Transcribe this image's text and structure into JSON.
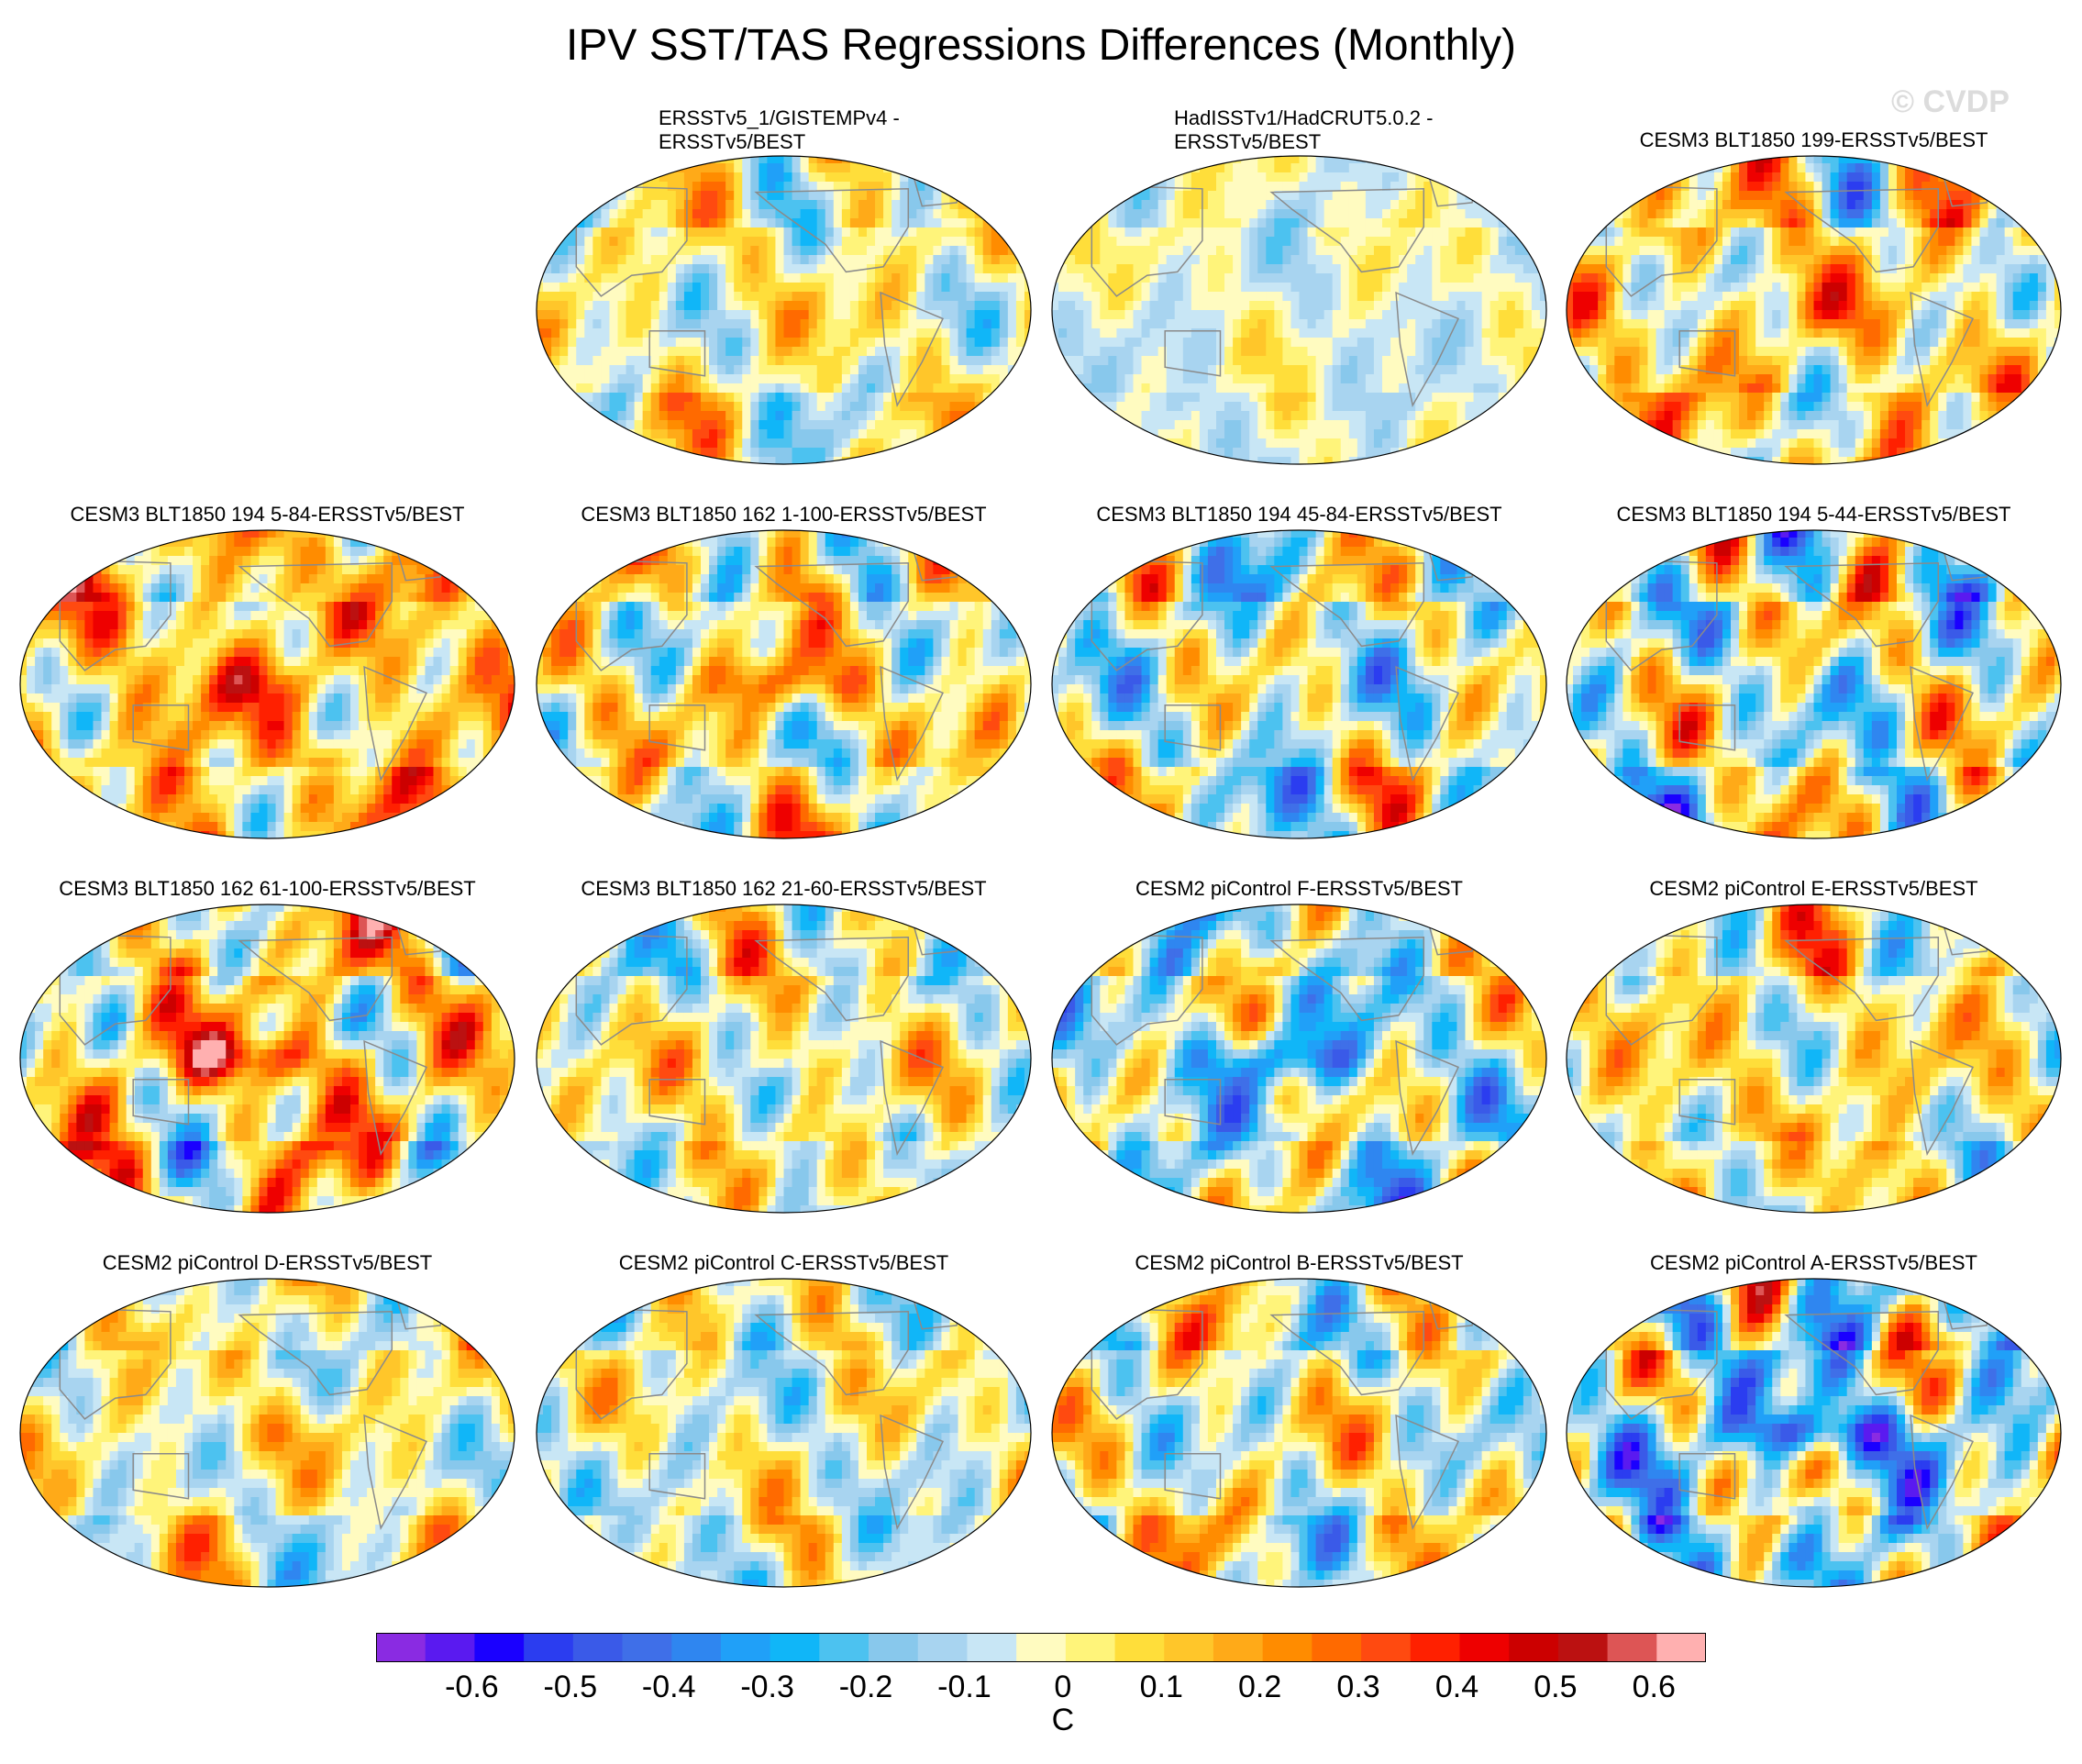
{
  "title": "IPV SST/TAS Regressions Differences (Monthly)",
  "watermark": "© CVDP",
  "chart_data": {
    "type": "heatmap",
    "title": "IPV SST/TAS Regressions Differences (Monthly)",
    "projection": "global map (Robinson-like), Pacific-centered",
    "colorbar": {
      "unit": "C",
      "tick_labels": [
        "-0.6",
        "-0.5",
        "-0.4",
        "-0.3",
        "-0.2",
        "-0.1",
        "0",
        "0.1",
        "0.2",
        "0.3",
        "0.4",
        "0.5",
        "0.6"
      ],
      "tick_values": [
        -0.6,
        -0.5,
        -0.4,
        -0.3,
        -0.2,
        -0.1,
        0,
        0.1,
        0.2,
        0.3,
        0.4,
        0.5,
        0.6
      ],
      "colors": [
        "#8a2be2",
        "#5a1af0",
        "#1a00ff",
        "#2b3df0",
        "#3a5ae8",
        "#3f6fe8",
        "#2f86f0",
        "#20a0f8",
        "#10b6f8",
        "#4cc2f0",
        "#88c8ec",
        "#a8d4f0",
        "#c8e6f5",
        "#fffbc0",
        "#fff47a",
        "#ffde3a",
        "#ffc62a",
        "#ffaa18",
        "#ff8c00",
        "#ff6a00",
        "#ff4a10",
        "#ff2000",
        "#ee0000",
        "#cc0000",
        "#bb1111",
        "#dd5555",
        "#ffb0b0"
      ]
    },
    "panels": [
      {
        "title": "ERSSTv5_1/GISTEMPv4 -\nERSSTv5/BEST",
        "pattern": 0,
        "bias": 0.02,
        "amp": 0.15
      },
      {
        "title": "HadISSTv1/HadCRUT5.0.2 -\nERSSTv5/BEST",
        "pattern": 1,
        "bias": -0.02,
        "amp": 0.09
      },
      {
        "title": "CESM3 BLT1850 199-ERSSTv5/BEST",
        "pattern": 2,
        "bias": 0.08,
        "amp": 0.2
      },
      {
        "title": "CESM3 BLT1850 194 5-84-ERSSTv5/BEST",
        "pattern": 3,
        "bias": 0.14,
        "amp": 0.2
      },
      {
        "title": "CESM3 BLT1850 162 1-100-ERSSTv5/BEST",
        "pattern": 4,
        "bias": 0.04,
        "amp": 0.2
      },
      {
        "title": "CESM3 BLT1850 194 45-84-ERSSTv5/BEST",
        "pattern": 5,
        "bias": -0.03,
        "amp": 0.22
      },
      {
        "title": "CESM3 BLT1850 194 5-44-ERSSTv5/BEST",
        "pattern": 6,
        "bias": -0.01,
        "amp": 0.25
      },
      {
        "title": "CESM3 BLT1850 162 61-100-ERSSTv5/BEST",
        "pattern": 7,
        "bias": 0.1,
        "amp": 0.25
      },
      {
        "title": "CESM3 BLT1850 162 21-60-ERSSTv5/BEST",
        "pattern": 8,
        "bias": 0.02,
        "amp": 0.18
      },
      {
        "title": "CESM2 piControl F-ERSSTv5/BEST",
        "pattern": 9,
        "bias": -0.06,
        "amp": 0.22
      },
      {
        "title": "CESM2 piControl E-ERSSTv5/BEST",
        "pattern": 10,
        "bias": 0.05,
        "amp": 0.18
      },
      {
        "title": "CESM2 piControl D-ERSSTv5/BEST",
        "pattern": 11,
        "bias": 0.02,
        "amp": 0.15
      },
      {
        "title": "CESM2 piControl C-ERSSTv5/BEST",
        "pattern": 12,
        "bias": 0.0,
        "amp": 0.16
      },
      {
        "title": "CESM2 piControl B-ERSSTv5/BEST",
        "pattern": 13,
        "bias": 0.01,
        "amp": 0.2
      },
      {
        "title": "CESM2 piControl A-ERSSTv5/BEST",
        "pattern": 14,
        "bias": -0.08,
        "amp": 0.28
      }
    ]
  }
}
